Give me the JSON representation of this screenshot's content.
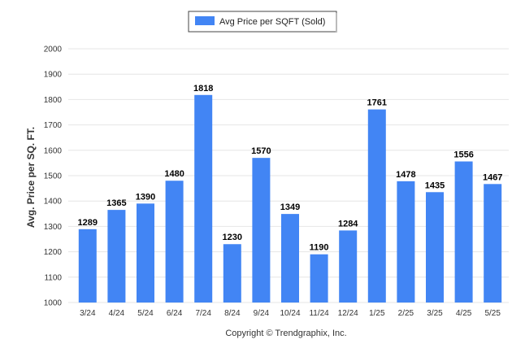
{
  "chart_data": {
    "type": "bar",
    "categories": [
      "3/24",
      "4/24",
      "5/24",
      "6/24",
      "7/24",
      "8/24",
      "9/24",
      "10/24",
      "11/24",
      "12/24",
      "1/25",
      "2/25",
      "3/25",
      "4/25",
      "5/25"
    ],
    "series": [
      {
        "name": "Avg Price per SQFT (Sold)",
        "color": "#4285f4",
        "values": [
          1289,
          1365,
          1390,
          1480,
          1818,
          1230,
          1570,
          1349,
          1190,
          1284,
          1761,
          1478,
          1435,
          1556,
          1467
        ]
      }
    ],
    "ylabel": "Avg. Price per SQ. FT.",
    "xlabel": "",
    "ylim": [
      1000,
      2000
    ],
    "yticks": [
      1000,
      1100,
      1200,
      1300,
      1400,
      1500,
      1600,
      1700,
      1800,
      1900,
      2000
    ],
    "grid": true,
    "legend": "top-center",
    "data_labels": true
  },
  "footer": {
    "copyright": "Copyright © Trendgraphix, Inc."
  }
}
